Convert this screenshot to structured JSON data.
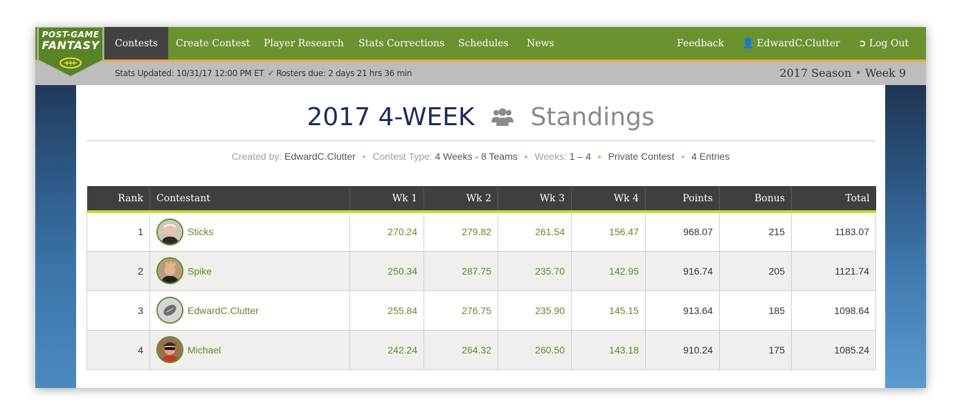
{
  "logo": {
    "line1": "POST-GAME",
    "line2": "FANTASY"
  },
  "nav": {
    "items": [
      {
        "label": "Contests",
        "active": true
      },
      {
        "label": "Create Contest"
      },
      {
        "label": "Player Research"
      },
      {
        "label": "Stats Corrections"
      },
      {
        "label": "Schedules"
      },
      {
        "label": "News"
      }
    ],
    "feedback": "Feedback",
    "user": {
      "icon": "user-icon",
      "name": "EdwardC.Clutter"
    },
    "logout": {
      "icon": "logout-icon",
      "label": "Log Out"
    }
  },
  "status": {
    "stats_updated": "Stats Updated: 10/31/17 12:00 PM ET",
    "rosters_due": "Rosters due: 2 days 21 hrs 36 min",
    "season": "2017 Season",
    "week": "Week 9"
  },
  "header": {
    "title_year": "2017",
    "title_contest": "4-WEEK",
    "title_icon": "group-icon",
    "title_standings": "Standings"
  },
  "meta": {
    "created_by_label": "Created by:",
    "created_by": "EdwardC.Clutter",
    "contest_type_label": "Contest Type:",
    "contest_type": "4 Weeks - 8 Teams",
    "weeks_label": "Weeks:",
    "weeks": "1 – 4",
    "privacy": "Private Contest",
    "entries": "4 Entries"
  },
  "table": {
    "columns": [
      "Rank",
      "Contestant",
      "Wk 1",
      "Wk 2",
      "Wk 3",
      "Wk 4",
      "Points",
      "Bonus",
      "Total"
    ],
    "rows": [
      {
        "rank": "1",
        "name": "Sticks",
        "avatar": "avatar-sticks",
        "wk1": "270.24",
        "wk2": "279.82",
        "wk3": "261.54",
        "wk4": "156.47",
        "points": "968.07",
        "bonus": "215",
        "total": "1183.07"
      },
      {
        "rank": "2",
        "name": "Spike",
        "avatar": "avatar-spike",
        "wk1": "250.34",
        "wk2": "287.75",
        "wk3": "235.70",
        "wk4": "142.95",
        "points": "916.74",
        "bonus": "205",
        "total": "1121.74"
      },
      {
        "rank": "3",
        "name": "EdwardC.Clutter",
        "avatar": "avatar-football",
        "wk1": "255.84",
        "wk2": "276.75",
        "wk3": "235.90",
        "wk4": "145.15",
        "points": "913.64",
        "bonus": "185",
        "total": "1098.64"
      },
      {
        "rank": "4",
        "name": "Michael",
        "avatar": "avatar-michael",
        "wk1": "242.24",
        "wk2": "264.32",
        "wk3": "260.50",
        "wk4": "143.18",
        "points": "910.24",
        "bonus": "175",
        "total": "1085.24"
      }
    ]
  },
  "colors": {
    "nav_green": "#6a9330",
    "accent_orange": "#f2a33a",
    "header_dark": "#3f3f3f",
    "header_underline": "#c6d92e",
    "title_navy": "#1d2a5a",
    "link_green": "#5f8a2b"
  }
}
